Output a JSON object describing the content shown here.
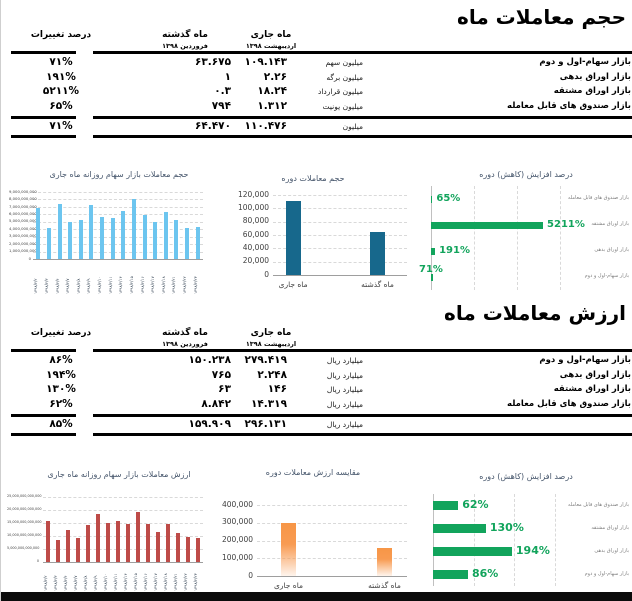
{
  "colors": {
    "positive_green": "#00A24F",
    "daily_volume_blue": "#6CC5EF",
    "period_blue": "#17688C",
    "daily_value_red": "#BE4B48",
    "period_orange": "#F79646",
    "change_green": "#12A45C"
  },
  "volume": {
    "title": "حجم معاملات ماه",
    "table": {
      "col_pct": "درصد تغییرات",
      "col_last": "ماه گذشته",
      "col_last_sub": "فروردین ۱۳۹۸",
      "col_cur": "ماه جاری",
      "col_cur_sub": "اردیبهشت ۱۳۹۸",
      "rows": [
        {
          "label": "بازار سهام-اول و دوم",
          "unit": "میلیون سهم",
          "current": "۱۰۹.۱۴۳",
          "last": "۶۳.۶۷۵",
          "pct": "۷۱%"
        },
        {
          "label": "بازار اوراق بدهی",
          "unit": "میلیون برگه",
          "current": "۲.۲۶",
          "last": "۱",
          "pct": "۱۹۱%"
        },
        {
          "label": "بازار اوراق مشتقه",
          "unit": "میلیون قرارداد",
          "current": "۱۸.۲۴",
          "last": "۰.۳",
          "pct": "۵۲۱۱%"
        },
        {
          "label": "بازار صندوق های قابل معامله",
          "unit": "میلیون یونیت",
          "current": "۱.۳۱۲",
          "last": "۷۹۴",
          "pct": "۶۵%"
        }
      ],
      "total": {
        "unit": "میلیون",
        "current": "۱۱۰.۴۷۶",
        "last": "۶۴.۴۷۰",
        "pct": "۷۱%"
      }
    }
  },
  "value": {
    "title": "ارزش معاملات ماه",
    "table": {
      "col_pct": "درصد تغییرات",
      "col_last": "ماه گذشته",
      "col_last_sub": "فروردین ۱۳۹۸",
      "col_cur": "ماه جاری",
      "col_cur_sub": "اردیبهشت ۱۳۹۸",
      "rows": [
        {
          "label": "بازار سهام-اول و دوم",
          "unit": "میلیارد ریال",
          "current": "۲۷۹.۴۱۹",
          "last": "۱۵۰.۲۳۸",
          "pct": "۸۶%"
        },
        {
          "label": "بازار اوراق بدهی",
          "unit": "میلیارد ریال",
          "current": "۲.۲۴۸",
          "last": "۷۶۵",
          "pct": "۱۹۴%"
        },
        {
          "label": "بازار اوراق مشتقه",
          "unit": "میلیارد ریال",
          "current": "۱۴۶",
          "last": "۶۳",
          "pct": "۱۳۰%"
        },
        {
          "label": "بازار صندوق های قابل معامله",
          "unit": "میلیارد ریال",
          "current": "۱۴.۳۱۹",
          "last": "۸.۸۴۲",
          "pct": "۶۲%"
        }
      ],
      "total": {
        "unit": "میلیارد ریال",
        "current": "۲۹۶.۱۳۱",
        "last": "۱۵۹.۹۰۹",
        "pct": "۸۵%"
      }
    }
  },
  "chart_data": [
    {
      "id": "daily_volume",
      "type": "bar",
      "title": "حجم معاملات بازار سهام روزانه ماه جاری",
      "categories": [
        "۱۳۹۸/۲/۲",
        "۱۳۹۸/۲/۳",
        "۱۳۹۸/۲/۴",
        "۱۳۹۸/۲/۷",
        "۱۳۹۸/۲/۸",
        "۱۳۹۸/۲/۹",
        "۱۳۹۸/۲/۱۰",
        "۱۳۹۸/۲/۱۱",
        "۱۳۹۸/۲/۱۴",
        "۱۳۹۸/۲/۱۵",
        "۱۳۹۸/۲/۱۶",
        "۱۳۹۸/۲/۱۷",
        "۱۳۹۸/۲/۱۸",
        "۱۳۹۸/۲/۲۱",
        "۱۳۹۸/۲/۲۲",
        "۱۳۹۸/۲/۲۳"
      ],
      "values": [
        6800000000,
        4100000000,
        7400000000,
        5000000000,
        5200000000,
        7300000000,
        5600000000,
        5500000000,
        6500000000,
        8000000000,
        5900000000,
        5000000000,
        6300000000,
        5200000000,
        4200000000,
        4300000000
      ],
      "ylim": [
        0,
        9000000000
      ],
      "ytick": 1000000000,
      "grid": true,
      "bar_color": "#6CC5EF"
    },
    {
      "id": "volume_period",
      "type": "bar",
      "title": "حجم معاملات دوره",
      "categories": [
        "ماه جاری",
        "ماه گذشته"
      ],
      "values": [
        110476,
        64470
      ],
      "ylim": [
        0,
        120000
      ],
      "ytick": 20000,
      "grid": true,
      "bar_color": "#17688C"
    },
    {
      "id": "volume_change",
      "type": "bar-horizontal",
      "title": "درصد افزایش (کاهش) دوره",
      "categories": [
        "بازار صندوق های قابل معامله",
        "بازار اوراق مشتقه",
        "بازار اوراق بدهی",
        "بازار سهام-اول و دوم"
      ],
      "values": [
        65,
        5211,
        191,
        71
      ],
      "labels": [
        "65%",
        "5211%",
        "191%",
        "71%"
      ],
      "xlim": [
        0,
        6000
      ],
      "xtick": 2000,
      "grid": true,
      "bar_color": "#12A45C",
      "label_color": "#12A45C"
    },
    {
      "id": "daily_value",
      "type": "bar",
      "title": "ارزش معاملات بازار سهام روزانه ماه جاری",
      "categories": [
        "۱۳۹۸/۲/۲",
        "۱۳۹۸/۲/۳",
        "۱۳۹۸/۲/۴",
        "۱۳۹۸/۲/۷",
        "۱۳۹۸/۲/۸",
        "۱۳۹۸/۲/۹",
        "۱۳۹۸/۲/۱۰",
        "۱۳۹۸/۲/۱۱",
        "۱۳۹۸/۲/۱۴",
        "۱۳۹۸/۲/۱۵",
        "۱۳۹۸/۲/۱۶",
        "۱۳۹۸/۲/۱۷",
        "۱۳۹۸/۲/۱۸",
        "۱۳۹۸/۲/۲۱",
        "۱۳۹۸/۲/۲۲",
        "۱۳۹۸/۲/۲۳"
      ],
      "values": [
        15600000000000,
        8500000000000,
        12400000000000,
        9400000000000,
        14400000000000,
        18600000000000,
        15000000000000,
        15600000000000,
        14800000000000,
        19200000000000,
        14500000000000,
        11400000000000,
        14500000000000,
        11000000000000,
        9500000000000,
        9200000000000
      ],
      "ylim": [
        0,
        25000000000000
      ],
      "ytick": 5000000000000,
      "grid": true,
      "bar_color": "#BE4B48"
    },
    {
      "id": "value_period",
      "type": "bar",
      "title": "مقایسه ارزش معاملات دوره",
      "categories": [
        "ماه جاری",
        "ماه گذشته"
      ],
      "values": [
        296131,
        159909
      ],
      "ylim": [
        0,
        400000
      ],
      "ytick": 100000,
      "grid": true,
      "bar_color": "#F79646",
      "bar_gradient": true
    },
    {
      "id": "value_change",
      "type": "bar-horizontal",
      "title": "درصد افزایش (کاهش) دوره",
      "categories": [
        "بازار صندوق های قابل معامله",
        "بازار اوراق مشتقه",
        "بازار اوراق بدهی",
        "بازار سهام-اول و دوم"
      ],
      "values": [
        62,
        130,
        194,
        86
      ],
      "labels": [
        "62%",
        "130%",
        "194%",
        "86%"
      ],
      "xlim": [
        0,
        300
      ],
      "xtick": 100,
      "grid": true,
      "bar_color": "#12A45C",
      "label_color": "#12A45C"
    }
  ]
}
